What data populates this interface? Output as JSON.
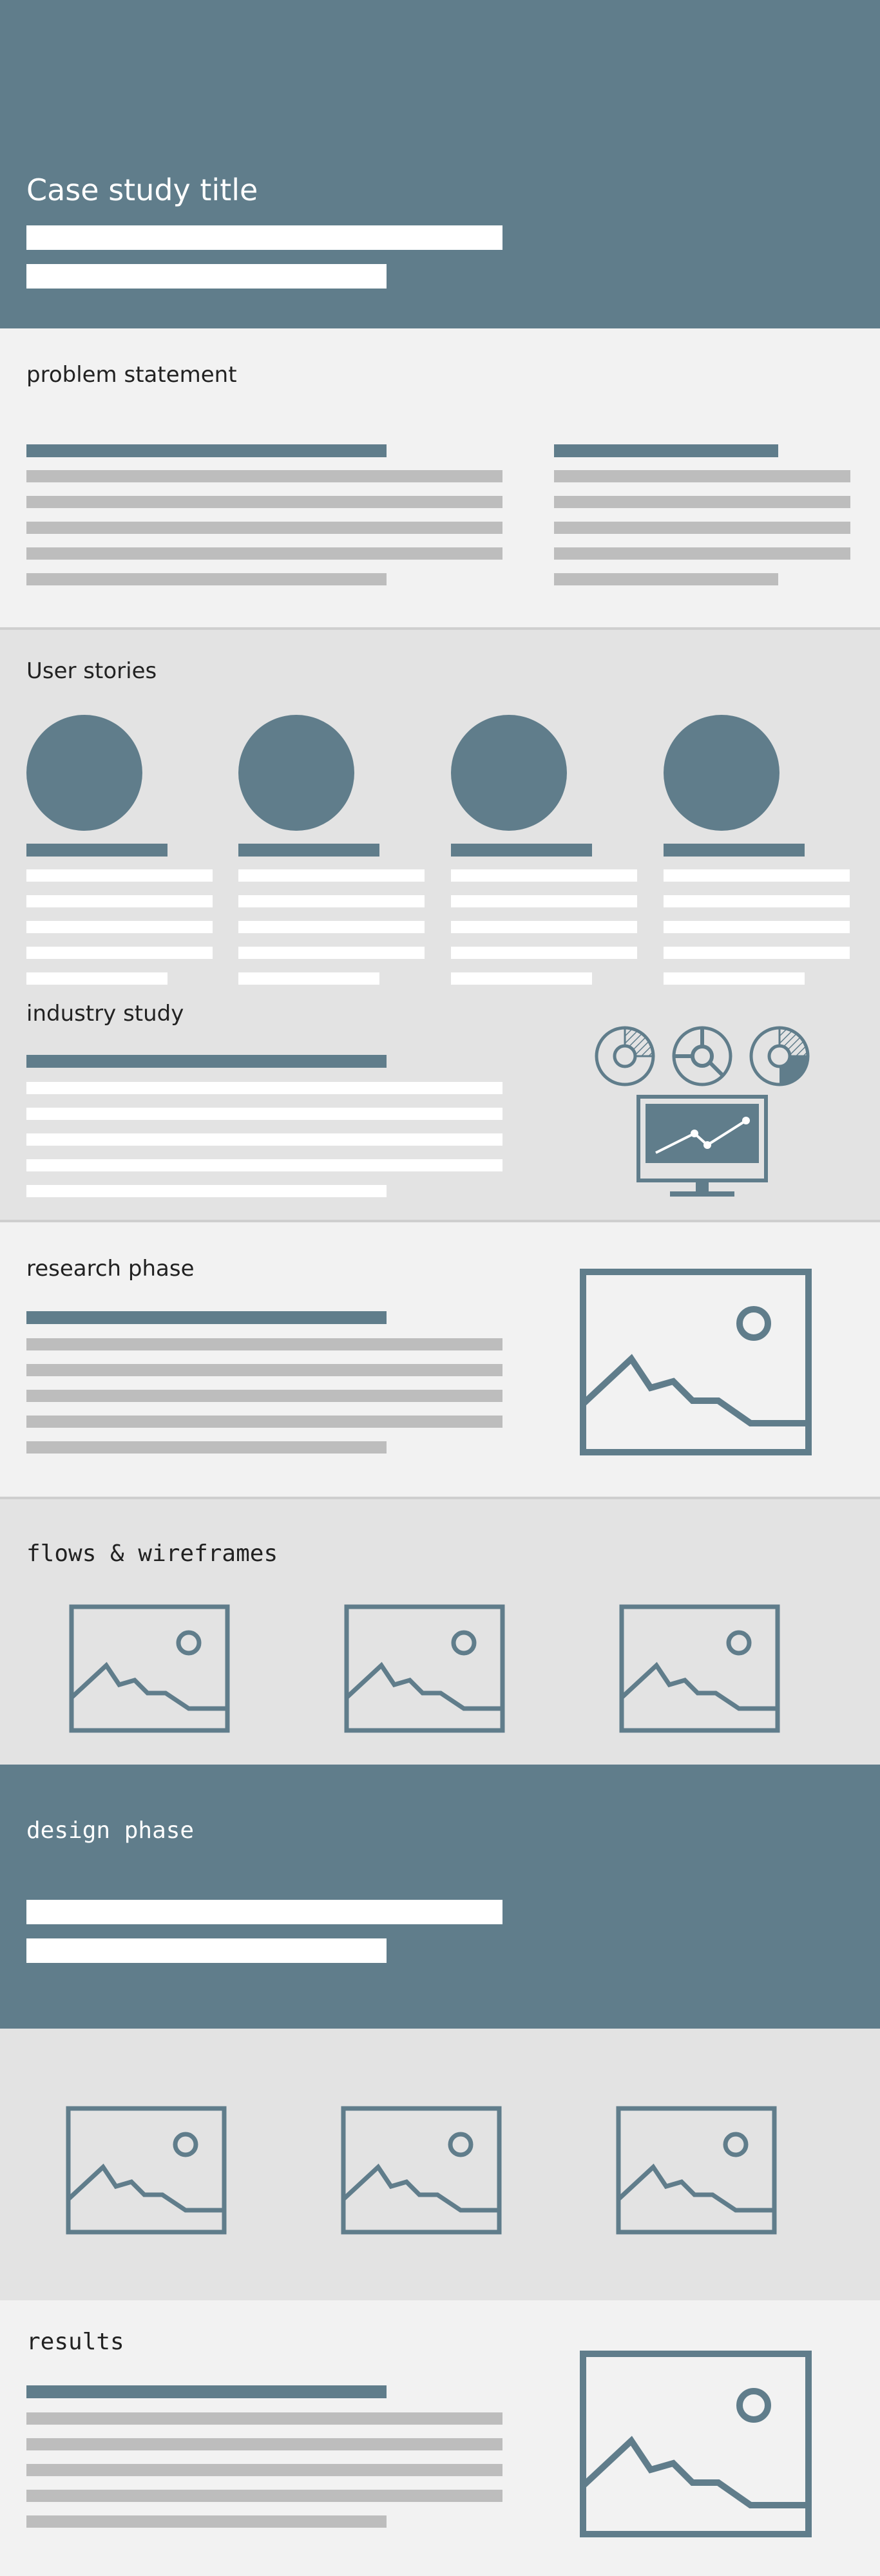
{
  "hero": {
    "title": "Case study title"
  },
  "problem": {
    "heading": "problem statement"
  },
  "stories": {
    "heading": "User stories",
    "user_count": 4
  },
  "industry": {
    "heading": "industry study",
    "icons": [
      "pie-chart-icon",
      "donut-chart-icon",
      "pie-chart-icon",
      "monitor-line-chart-icon"
    ]
  },
  "research": {
    "heading": "research phase",
    "icon": "image-placeholder-icon"
  },
  "flows": {
    "heading": "flows & wireframes",
    "icon": "image-placeholder-icon"
  },
  "design": {
    "heading": "design phase"
  },
  "gallery": {
    "icon": "image-placeholder-icon"
  },
  "results": {
    "heading": "results",
    "icon": "image-placeholder-icon"
  },
  "colors": {
    "accent": "#607d8b",
    "light_bg": "#f2f2f2",
    "mid_bg": "#e3e3e3",
    "placeholder_line": "#bdbdbd"
  }
}
